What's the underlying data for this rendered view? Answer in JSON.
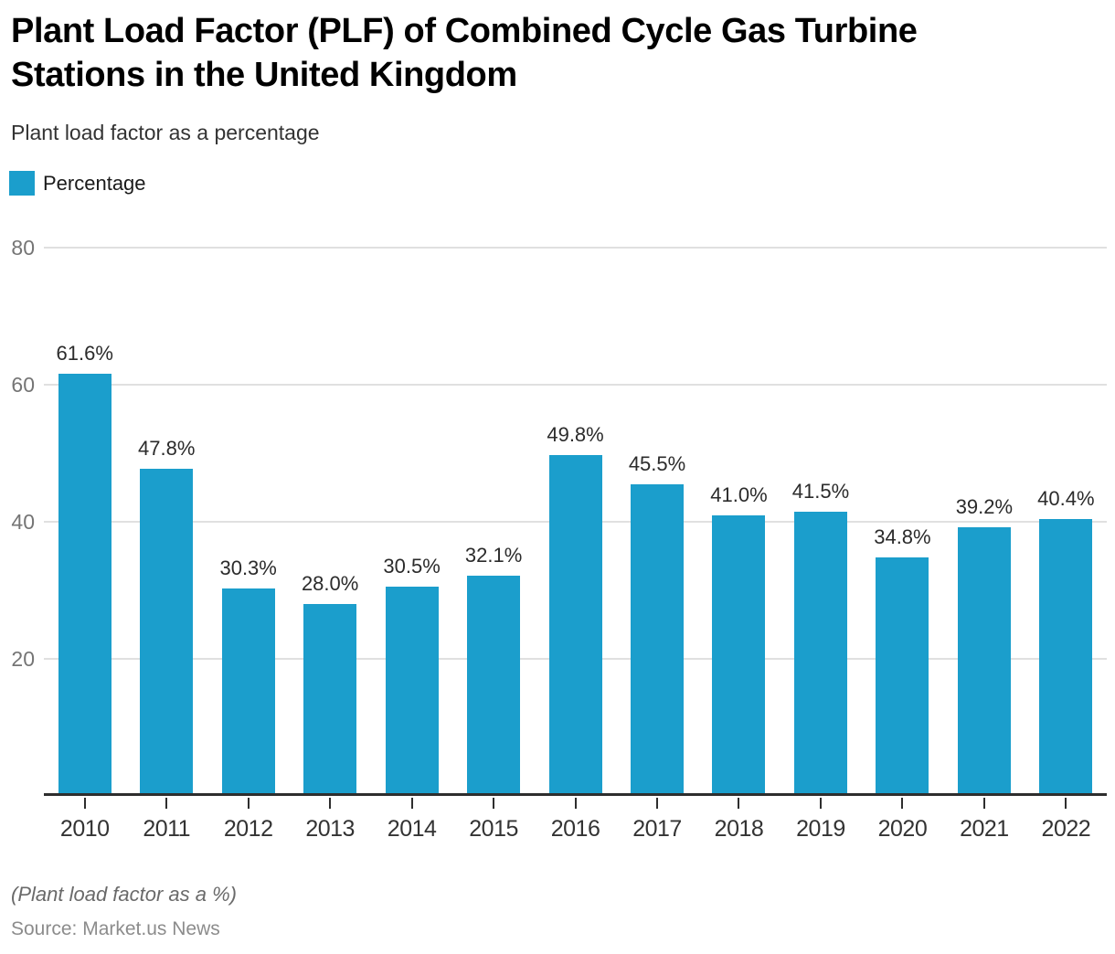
{
  "header": {
    "title_line1": "Plant Load Factor (PLF) of Combined Cycle Gas Turbine",
    "title_line2": "Stations in the United Kingdom",
    "subtitle": "Plant load factor as a percentage"
  },
  "legend": {
    "label": "Percentage"
  },
  "footer": {
    "note": "(Plant load factor as a %)",
    "source": "Source: Market.us News"
  },
  "colors": {
    "bar": "#1B9ECC",
    "gridline": "#E0E0E0",
    "axis": "#2E2E2E",
    "ytick_label": "#757575",
    "xtick_label": "#333333",
    "value_label": "#2B2B2B"
  },
  "chart_data": {
    "type": "bar",
    "title": "Plant Load Factor (PLF) of Combined Cycle Gas Turbine Stations in the United Kingdom",
    "subtitle": "Plant load factor as a percentage",
    "series_name": "Percentage",
    "categories": [
      "2010",
      "2011",
      "2012",
      "2013",
      "2014",
      "2015",
      "2016",
      "2017",
      "2018",
      "2019",
      "2020",
      "2021",
      "2022"
    ],
    "values": [
      61.6,
      47.8,
      30.3,
      28.0,
      30.5,
      32.1,
      49.8,
      45.5,
      41.0,
      41.5,
      34.8,
      39.2,
      40.4
    ],
    "value_labels": [
      "61.6%",
      "47.8%",
      "30.3%",
      "28.0%",
      "30.5%",
      "32.1%",
      "49.8%",
      "45.5%",
      "41.0%",
      "41.5%",
      "34.8%",
      "39.2%",
      "40.4%"
    ],
    "xlabel": "",
    "ylabel": "",
    "ylim": [
      0,
      80
    ],
    "yticks": [
      20,
      40,
      60,
      80
    ],
    "grid": "horizontal",
    "legend_position": "top-left",
    "footnote": "(Plant load factor as a %)",
    "source": "Source: Market.us News"
  }
}
